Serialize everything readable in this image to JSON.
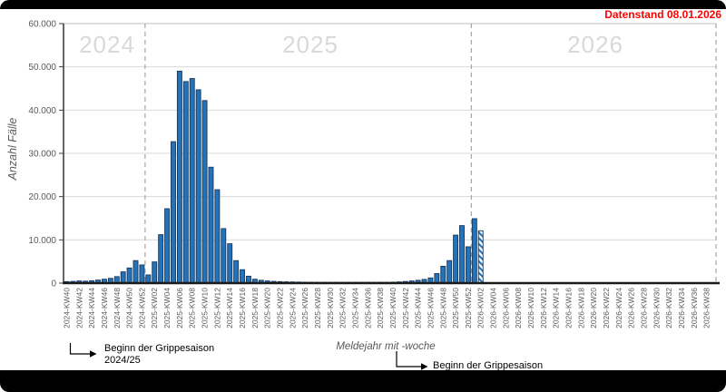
{
  "frame": {
    "datenstand": "Datenstand 08.01.2026",
    "datenstand_color": "#ff0000"
  },
  "annotations": {
    "season1": {
      "line1": "Beginn der Grippesaison",
      "line2": "2024/25"
    },
    "season2": {
      "text": "Beginn der Grippesaison"
    }
  },
  "chart_data": {
    "type": "bar",
    "title": "",
    "ylabel": "Anzahl Fälle",
    "xlabel": "Meldejahr mit -woche",
    "ylim": [
      0,
      60000
    ],
    "grid": true,
    "legend": "none",
    "years": [
      "2024",
      "2025",
      "2026"
    ],
    "year_separator_slots": [
      13,
      65,
      104
    ],
    "ytick_values": [
      0,
      10000,
      20000,
      30000,
      40000,
      50000,
      60000
    ],
    "ytick_labels": [
      "0",
      "10.000",
      "20.000",
      "30.000",
      "40.000",
      "50.000",
      "60.000"
    ],
    "bar_color": "#2473b8",
    "bar_border": "#17375e",
    "grid_color": "#d9d9d9",
    "separator_color": "#a6a6a6",
    "tick_text_color": "#595959",
    "preliminary_week": "2026-KW02",
    "weeks": [
      {
        "label": "2024-KW40",
        "value": 350
      },
      {
        "label": "2024-KW41",
        "value": 400
      },
      {
        "label": "2024-KW42",
        "value": 500
      },
      {
        "label": "2024-KW43",
        "value": 450
      },
      {
        "label": "2024-KW44",
        "value": 550
      },
      {
        "label": "2024-KW45",
        "value": 700
      },
      {
        "label": "2024-KW46",
        "value": 900
      },
      {
        "label": "2024-KW47",
        "value": 1100
      },
      {
        "label": "2024-KW48",
        "value": 1500
      },
      {
        "label": "2024-KW49",
        "value": 2600
      },
      {
        "label": "2024-KW50",
        "value": 3500
      },
      {
        "label": "2024-KW51",
        "value": 5200
      },
      {
        "label": "2024-KW52",
        "value": 4200
      },
      {
        "label": "2025-KW01",
        "value": 1900
      },
      {
        "label": "2025-KW02",
        "value": 4900
      },
      {
        "label": "2025-KW03",
        "value": 11200
      },
      {
        "label": "2025-KW04",
        "value": 17200
      },
      {
        "label": "2025-KW05",
        "value": 32700
      },
      {
        "label": "2025-KW06",
        "value": 49000
      },
      {
        "label": "2025-KW07",
        "value": 46600
      },
      {
        "label": "2025-KW08",
        "value": 47300
      },
      {
        "label": "2025-KW09",
        "value": 44700
      },
      {
        "label": "2025-KW10",
        "value": 42200
      },
      {
        "label": "2025-KW11",
        "value": 26800
      },
      {
        "label": "2025-KW12",
        "value": 21600
      },
      {
        "label": "2025-KW13",
        "value": 12600
      },
      {
        "label": "2025-KW14",
        "value": 9100
      },
      {
        "label": "2025-KW15",
        "value": 5200
      },
      {
        "label": "2025-KW16",
        "value": 3100
      },
      {
        "label": "2025-KW17",
        "value": 1600
      },
      {
        "label": "2025-KW18",
        "value": 900
      },
      {
        "label": "2025-KW19",
        "value": 650
      },
      {
        "label": "2025-KW20",
        "value": 500
      },
      {
        "label": "2025-KW21",
        "value": 400
      },
      {
        "label": "2025-KW22",
        "value": 350
      },
      {
        "label": "2025-KW23",
        "value": 300
      },
      {
        "label": "2025-KW24",
        "value": 270
      },
      {
        "label": "2025-KW25",
        "value": 240
      },
      {
        "label": "2025-KW26",
        "value": 220
      },
      {
        "label": "2025-KW27",
        "value": 200
      },
      {
        "label": "2025-KW28",
        "value": 180
      },
      {
        "label": "2025-KW29",
        "value": 170
      },
      {
        "label": "2025-KW30",
        "value": 160
      },
      {
        "label": "2025-KW31",
        "value": 150
      },
      {
        "label": "2025-KW32",
        "value": 150
      },
      {
        "label": "2025-KW33",
        "value": 140
      },
      {
        "label": "2025-KW34",
        "value": 140
      },
      {
        "label": "2025-KW35",
        "value": 130
      },
      {
        "label": "2025-KW36",
        "value": 130
      },
      {
        "label": "2025-KW37",
        "value": 140
      },
      {
        "label": "2025-KW38",
        "value": 150
      },
      {
        "label": "2025-KW39",
        "value": 170
      },
      {
        "label": "2025-KW40",
        "value": 220
      },
      {
        "label": "2025-KW41",
        "value": 280
      },
      {
        "label": "2025-KW42",
        "value": 380
      },
      {
        "label": "2025-KW43",
        "value": 500
      },
      {
        "label": "2025-KW44",
        "value": 650
      },
      {
        "label": "2025-KW45",
        "value": 850
      },
      {
        "label": "2025-KW46",
        "value": 1200
      },
      {
        "label": "2025-KW47",
        "value": 2200
      },
      {
        "label": "2025-KW48",
        "value": 3900
      },
      {
        "label": "2025-KW49",
        "value": 5200
      },
      {
        "label": "2025-KW50",
        "value": 11100
      },
      {
        "label": "2025-KW51",
        "value": 13300
      },
      {
        "label": "2025-KW52",
        "value": 8400
      },
      {
        "label": "2026-KW01",
        "value": 14900
      },
      {
        "label": "2026-KW02",
        "value": 12100,
        "preliminary": true
      },
      {
        "label": "2026-KW03",
        "value": null
      },
      {
        "label": "2026-KW04",
        "value": null
      },
      {
        "label": "2026-KW05",
        "value": null
      },
      {
        "label": "2026-KW06",
        "value": null
      },
      {
        "label": "2026-KW07",
        "value": null
      },
      {
        "label": "2026-KW08",
        "value": null
      },
      {
        "label": "2026-KW09",
        "value": null
      },
      {
        "label": "2026-KW10",
        "value": null
      },
      {
        "label": "2026-KW11",
        "value": null
      },
      {
        "label": "2026-KW12",
        "value": null
      },
      {
        "label": "2026-KW13",
        "value": null
      },
      {
        "label": "2026-KW14",
        "value": null
      },
      {
        "label": "2026-KW15",
        "value": null
      },
      {
        "label": "2026-KW16",
        "value": null
      },
      {
        "label": "2026-KW17",
        "value": null
      },
      {
        "label": "2026-KW18",
        "value": null
      },
      {
        "label": "2026-KW19",
        "value": null
      },
      {
        "label": "2026-KW20",
        "value": null
      },
      {
        "label": "2026-KW21",
        "value": null
      },
      {
        "label": "2026-KW22",
        "value": null
      },
      {
        "label": "2026-KW23",
        "value": null
      },
      {
        "label": "2026-KW24",
        "value": null
      },
      {
        "label": "2026-KW25",
        "value": null
      },
      {
        "label": "2026-KW26",
        "value": null
      },
      {
        "label": "2026-KW27",
        "value": null
      },
      {
        "label": "2026-KW28",
        "value": null
      },
      {
        "label": "2026-KW29",
        "value": null
      },
      {
        "label": "2026-KW30",
        "value": null
      },
      {
        "label": "2026-KW31",
        "value": null
      },
      {
        "label": "2026-KW32",
        "value": null
      },
      {
        "label": "2026-KW33",
        "value": null
      },
      {
        "label": "2026-KW34",
        "value": null
      },
      {
        "label": "2026-KW35",
        "value": null
      },
      {
        "label": "2026-KW36",
        "value": null
      },
      {
        "label": "2026-KW37",
        "value": null
      },
      {
        "label": "2026-KW38",
        "value": null
      },
      {
        "label": "2026-KW39",
        "value": null
      }
    ]
  }
}
